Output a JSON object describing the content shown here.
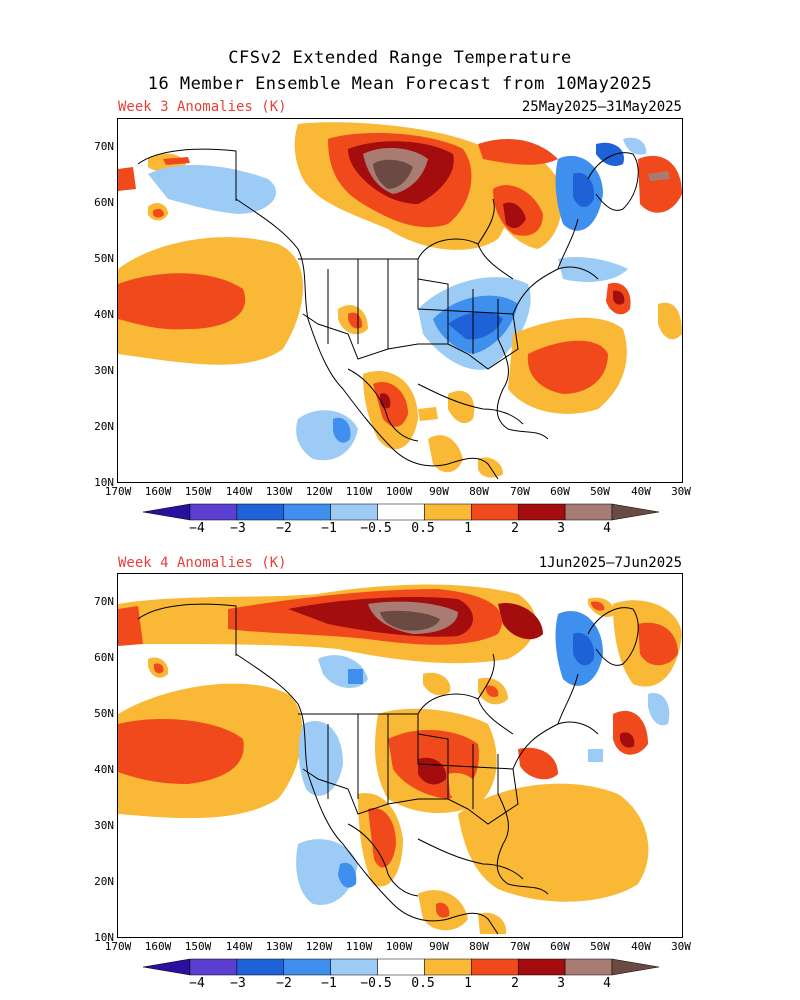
{
  "title_line1": "CFSv2 Extended Range Temperature",
  "title_line2": "16 Member Ensemble Mean Forecast from 10May2025",
  "panels": [
    {
      "label": "Week 3 Anomalies (K)",
      "dates": "25May2025–31May2025"
    },
    {
      "label": "Week 4 Anomalies (K)",
      "dates": "1Jun2025–7Jun2025"
    }
  ],
  "lat_labels": [
    "70N",
    "60N",
    "50N",
    "40N",
    "30N",
    "20N",
    "10N"
  ],
  "lon_labels": [
    "170W",
    "160W",
    "150W",
    "140W",
    "130W",
    "120W",
    "110W",
    "100W",
    "90W",
    "80W",
    "70W",
    "60W",
    "50W",
    "40W",
    "30W"
  ],
  "colorbar": {
    "labels": [
      "−4",
      "−3",
      "−2",
      "−1",
      "−0.5",
      "0.5",
      "1",
      "2",
      "3",
      "4"
    ],
    "colors": {
      "neg4": "#2b0f9e",
      "neg3": "#5a3fd1",
      "neg2": "#1f62d8",
      "neg1": "#3f8fef",
      "neg05": "#9ccbf5",
      "neutral": "#ffffff",
      "pos05": "#f9b836",
      "pos1": "#f04a1c",
      "pos2": "#a30d0d",
      "pos3": "#a87c72",
      "pos4": "#6a4a42"
    }
  }
}
